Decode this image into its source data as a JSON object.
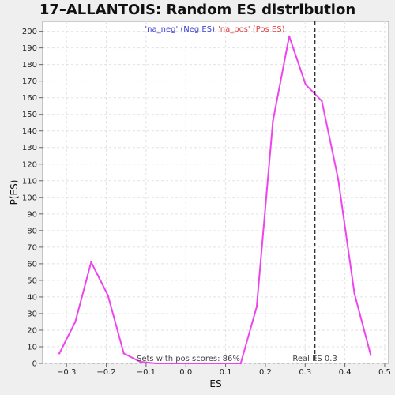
{
  "chart_data": {
    "type": "line",
    "title": "17–ALLANTOIS: Random ES distribution",
    "xlabel": "ES",
    "ylabel": "P(ES)",
    "xlim": [
      -0.36,
      0.51
    ],
    "ylim": [
      0,
      206
    ],
    "x_ticks": [
      -0.3,
      -0.2,
      -0.1,
      0.0,
      0.1,
      0.2,
      0.3,
      0.4,
      0.5
    ],
    "x_tick_labels": [
      "−0.3",
      "−0.2",
      "−0.1",
      "0.0",
      "0.1",
      "0.2",
      "0.3",
      "0.4",
      "0.5"
    ],
    "y_ticks": [
      0,
      10,
      20,
      30,
      40,
      50,
      60,
      70,
      80,
      90,
      100,
      110,
      120,
      130,
      140,
      150,
      160,
      170,
      180,
      190,
      200
    ],
    "grid": true,
    "legend": {
      "position": "top-center",
      "neg": {
        "label": "'na_neg' (Neg ES)",
        "color": "#4040d0"
      },
      "pos": {
        "label": "'na_pos' (Pos ES)",
        "color": "#e04040"
      }
    },
    "series": [
      {
        "name": "'na_pos' (Pos ES)",
        "color": "#ee44ee",
        "x": [
          -0.318,
          -0.278,
          -0.238,
          -0.196,
          -0.156,
          -0.115,
          -0.075,
          -0.035,
          0.006,
          0.046,
          0.087,
          0.127,
          0.138,
          0.178,
          0.219,
          0.26,
          0.301,
          0.342,
          0.383,
          0.424,
          0.465
        ],
        "values": [
          6,
          25,
          61,
          41,
          6,
          1,
          0,
          0,
          0,
          0,
          0,
          0,
          0,
          34,
          146,
          197,
          168,
          158,
          111,
          42,
          5
        ]
      }
    ],
    "real_es": {
      "x": 0.324,
      "label": "Real ES 0.3"
    },
    "annotation": "Sets with pos scores: 86%"
  }
}
